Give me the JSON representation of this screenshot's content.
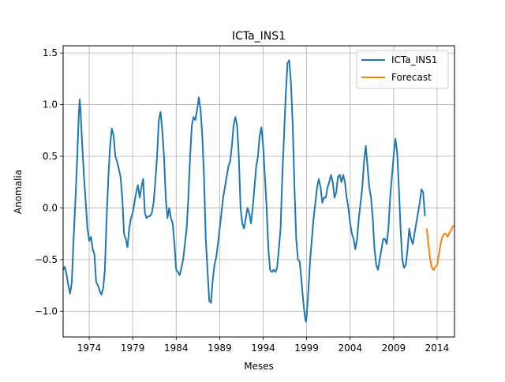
{
  "chart_data": {
    "type": "line",
    "title": "ICTa_INS1",
    "xlabel": "Meses",
    "ylabel": "Anomalia",
    "xlim": [
      1971.0,
      2016.0
    ],
    "ylim": [
      -1.25,
      1.57
    ],
    "xticks": [
      1974,
      1979,
      1984,
      1989,
      1994,
      1999,
      2004,
      2009,
      2014
    ],
    "yticks": [
      -1.0,
      -0.5,
      0.0,
      0.5,
      1.0,
      1.5
    ],
    "ytick_labels": [
      "−1.0",
      "−0.5",
      "0.0",
      "0.5",
      "1.0",
      "1.5"
    ],
    "grid": true,
    "legend_position": "upper right",
    "colors": {
      "ICTa_INS1": "#1f77b4",
      "Forecast": "#ff7f0e"
    },
    "series": [
      {
        "name": "ICTa_INS1",
        "points": [
          [
            1971.0,
            -0.6
          ],
          [
            1971.2,
            -0.57
          ],
          [
            1971.4,
            -0.65
          ],
          [
            1971.6,
            -0.75
          ],
          [
            1971.8,
            -0.83
          ],
          [
            1972.0,
            -0.72
          ],
          [
            1972.2,
            -0.3
          ],
          [
            1972.4,
            0.05
          ],
          [
            1972.6,
            0.45
          ],
          [
            1972.8,
            0.9
          ],
          [
            1972.9,
            1.05
          ],
          [
            1973.0,
            0.95
          ],
          [
            1973.2,
            0.6
          ],
          [
            1973.4,
            0.3
          ],
          [
            1973.6,
            0.05
          ],
          [
            1973.8,
            -0.2
          ],
          [
            1974.0,
            -0.32
          ],
          [
            1974.2,
            -0.28
          ],
          [
            1974.4,
            -0.4
          ],
          [
            1974.6,
            -0.45
          ],
          [
            1974.8,
            -0.72
          ],
          [
            1975.0,
            -0.75
          ],
          [
            1975.2,
            -0.8
          ],
          [
            1975.4,
            -0.84
          ],
          [
            1975.6,
            -0.78
          ],
          [
            1975.8,
            -0.6
          ],
          [
            1976.0,
            -0.1
          ],
          [
            1976.2,
            0.3
          ],
          [
            1976.4,
            0.6
          ],
          [
            1976.6,
            0.77
          ],
          [
            1976.8,
            0.7
          ],
          [
            1977.0,
            0.5
          ],
          [
            1977.2,
            0.45
          ],
          [
            1977.4,
            0.38
          ],
          [
            1977.6,
            0.3
          ],
          [
            1977.8,
            0.1
          ],
          [
            1978.0,
            -0.25
          ],
          [
            1978.2,
            -0.3
          ],
          [
            1978.4,
            -0.38
          ],
          [
            1978.6,
            -0.2
          ],
          [
            1978.8,
            -0.1
          ],
          [
            1979.0,
            -0.05
          ],
          [
            1979.2,
            0.05
          ],
          [
            1979.4,
            0.15
          ],
          [
            1979.6,
            0.22
          ],
          [
            1979.8,
            0.1
          ],
          [
            1980.0,
            0.2
          ],
          [
            1980.2,
            0.28
          ],
          [
            1980.4,
            -0.05
          ],
          [
            1980.6,
            -0.1
          ],
          [
            1980.8,
            -0.08
          ],
          [
            1981.0,
            -0.08
          ],
          [
            1981.2,
            -0.05
          ],
          [
            1981.4,
            0.05
          ],
          [
            1981.6,
            0.25
          ],
          [
            1981.8,
            0.5
          ],
          [
            1982.0,
            0.85
          ],
          [
            1982.2,
            0.93
          ],
          [
            1982.4,
            0.75
          ],
          [
            1982.6,
            0.5
          ],
          [
            1982.8,
            0.1
          ],
          [
            1983.0,
            -0.1
          ],
          [
            1983.2,
            0.0
          ],
          [
            1983.4,
            -0.1
          ],
          [
            1983.6,
            -0.15
          ],
          [
            1983.8,
            -0.35
          ],
          [
            1984.0,
            -0.6
          ],
          [
            1984.2,
            -0.62
          ],
          [
            1984.4,
            -0.65
          ],
          [
            1984.6,
            -0.58
          ],
          [
            1984.8,
            -0.5
          ],
          [
            1985.0,
            -0.35
          ],
          [
            1985.2,
            -0.2
          ],
          [
            1985.4,
            0.1
          ],
          [
            1985.6,
            0.5
          ],
          [
            1985.8,
            0.8
          ],
          [
            1986.0,
            0.88
          ],
          [
            1986.2,
            0.85
          ],
          [
            1986.4,
            0.95
          ],
          [
            1986.6,
            1.07
          ],
          [
            1986.8,
            0.95
          ],
          [
            1987.0,
            0.7
          ],
          [
            1987.2,
            0.3
          ],
          [
            1987.4,
            -0.3
          ],
          [
            1987.6,
            -0.6
          ],
          [
            1987.8,
            -0.9
          ],
          [
            1988.0,
            -0.92
          ],
          [
            1988.2,
            -0.7
          ],
          [
            1988.4,
            -0.55
          ],
          [
            1988.6,
            -0.48
          ],
          [
            1988.8,
            -0.35
          ],
          [
            1989.0,
            -0.2
          ],
          [
            1989.2,
            -0.05
          ],
          [
            1989.4,
            0.1
          ],
          [
            1989.6,
            0.2
          ],
          [
            1989.8,
            0.3
          ],
          [
            1990.0,
            0.4
          ],
          [
            1990.2,
            0.45
          ],
          [
            1990.4,
            0.6
          ],
          [
            1990.6,
            0.8
          ],
          [
            1990.8,
            0.88
          ],
          [
            1991.0,
            0.8
          ],
          [
            1991.2,
            0.5
          ],
          [
            1991.4,
            0.0
          ],
          [
            1991.6,
            -0.15
          ],
          [
            1991.8,
            -0.2
          ],
          [
            1992.0,
            -0.1
          ],
          [
            1992.2,
            0.0
          ],
          [
            1992.4,
            -0.05
          ],
          [
            1992.6,
            -0.15
          ],
          [
            1992.8,
            0.0
          ],
          [
            1993.0,
            0.2
          ],
          [
            1993.2,
            0.4
          ],
          [
            1993.4,
            0.5
          ],
          [
            1993.6,
            0.7
          ],
          [
            1993.8,
            0.78
          ],
          [
            1994.0,
            0.6
          ],
          [
            1994.2,
            0.3
          ],
          [
            1994.4,
            0.0
          ],
          [
            1994.6,
            -0.4
          ],
          [
            1994.8,
            -0.6
          ],
          [
            1995.0,
            -0.62
          ],
          [
            1995.2,
            -0.6
          ],
          [
            1995.4,
            -0.62
          ],
          [
            1995.6,
            -0.58
          ],
          [
            1995.8,
            -0.4
          ],
          [
            1996.0,
            -0.2
          ],
          [
            1996.2,
            0.3
          ],
          [
            1996.4,
            0.7
          ],
          [
            1996.6,
            1.1
          ],
          [
            1996.8,
            1.4
          ],
          [
            1997.0,
            1.43
          ],
          [
            1997.2,
            1.2
          ],
          [
            1997.4,
            0.8
          ],
          [
            1997.6,
            0.2
          ],
          [
            1997.8,
            -0.3
          ],
          [
            1998.0,
            -0.5
          ],
          [
            1998.2,
            -0.52
          ],
          [
            1998.4,
            -0.7
          ],
          [
            1998.6,
            -0.9
          ],
          [
            1998.8,
            -1.05
          ],
          [
            1998.9,
            -1.1
          ],
          [
            1999.0,
            -1.05
          ],
          [
            1999.2,
            -0.8
          ],
          [
            1999.4,
            -0.5
          ],
          [
            1999.6,
            -0.3
          ],
          [
            1999.8,
            -0.1
          ],
          [
            2000.0,
            0.05
          ],
          [
            2000.2,
            0.2
          ],
          [
            2000.4,
            0.28
          ],
          [
            2000.6,
            0.2
          ],
          [
            2000.8,
            0.05
          ],
          [
            2001.0,
            0.1
          ],
          [
            2001.2,
            0.1
          ],
          [
            2001.4,
            0.2
          ],
          [
            2001.6,
            0.25
          ],
          [
            2001.8,
            0.32
          ],
          [
            2002.0,
            0.25
          ],
          [
            2002.2,
            0.1
          ],
          [
            2002.4,
            0.15
          ],
          [
            2002.6,
            0.3
          ],
          [
            2002.8,
            0.32
          ],
          [
            2003.0,
            0.25
          ],
          [
            2003.2,
            0.32
          ],
          [
            2003.4,
            0.25
          ],
          [
            2003.6,
            0.1
          ],
          [
            2003.8,
            0.0
          ],
          [
            2004.0,
            -0.15
          ],
          [
            2004.2,
            -0.25
          ],
          [
            2004.4,
            -0.3
          ],
          [
            2004.6,
            -0.4
          ],
          [
            2004.8,
            -0.3
          ],
          [
            2005.0,
            -0.1
          ],
          [
            2005.2,
            0.05
          ],
          [
            2005.4,
            0.2
          ],
          [
            2005.6,
            0.45
          ],
          [
            2005.8,
            0.6
          ],
          [
            2006.0,
            0.4
          ],
          [
            2006.2,
            0.2
          ],
          [
            2006.4,
            0.1
          ],
          [
            2006.6,
            -0.1
          ],
          [
            2006.8,
            -0.4
          ],
          [
            2007.0,
            -0.55
          ],
          [
            2007.2,
            -0.6
          ],
          [
            2007.4,
            -0.5
          ],
          [
            2007.6,
            -0.4
          ],
          [
            2007.8,
            -0.3
          ],
          [
            2008.0,
            -0.3
          ],
          [
            2008.2,
            -0.35
          ],
          [
            2008.4,
            -0.2
          ],
          [
            2008.6,
            0.1
          ],
          [
            2008.8,
            0.3
          ],
          [
            2009.0,
            0.5
          ],
          [
            2009.2,
            0.67
          ],
          [
            2009.4,
            0.55
          ],
          [
            2009.6,
            0.2
          ],
          [
            2009.8,
            -0.2
          ],
          [
            2010.0,
            -0.5
          ],
          [
            2010.2,
            -0.58
          ],
          [
            2010.4,
            -0.55
          ],
          [
            2010.6,
            -0.4
          ],
          [
            2010.8,
            -0.2
          ],
          [
            2011.0,
            -0.3
          ],
          [
            2011.2,
            -0.35
          ],
          [
            2011.4,
            -0.25
          ],
          [
            2011.6,
            -0.15
          ],
          [
            2011.8,
            -0.05
          ],
          [
            2012.0,
            0.05
          ],
          [
            2012.2,
            0.18
          ],
          [
            2012.4,
            0.15
          ],
          [
            2012.6,
            -0.08
          ]
        ]
      },
      {
        "name": "Forecast",
        "points": [
          [
            2012.8,
            -0.2
          ],
          [
            2013.0,
            -0.35
          ],
          [
            2013.2,
            -0.5
          ],
          [
            2013.4,
            -0.58
          ],
          [
            2013.6,
            -0.6
          ],
          [
            2013.8,
            -0.57
          ],
          [
            2014.0,
            -0.55
          ],
          [
            2014.2,
            -0.45
          ],
          [
            2014.4,
            -0.35
          ],
          [
            2014.6,
            -0.28
          ],
          [
            2014.8,
            -0.25
          ],
          [
            2015.0,
            -0.25
          ],
          [
            2015.2,
            -0.28
          ],
          [
            2015.4,
            -0.24
          ],
          [
            2015.6,
            -0.22
          ],
          [
            2015.8,
            -0.18
          ],
          [
            2016.0,
            -0.17
          ],
          [
            2016.2,
            -0.22
          ],
          [
            2016.3,
            -0.28
          ]
        ]
      }
    ]
  }
}
